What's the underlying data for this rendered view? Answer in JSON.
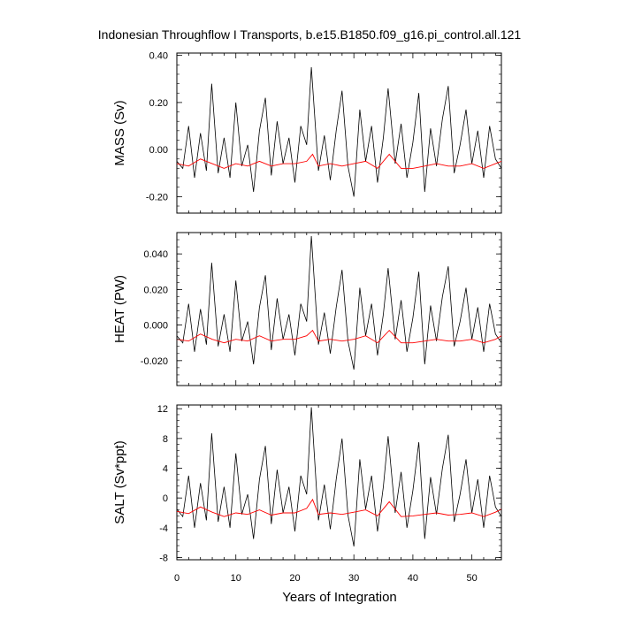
{
  "title": "Indonesian Throughflow I Transports, b.e15.B1850.f09_g16.pi_control.all.121",
  "xlabel": "Years of Integration",
  "colors": {
    "raw_series": "#000000",
    "smooth_series": "#ff0000",
    "frame": "#000000"
  },
  "chart_data": [
    {
      "type": "line",
      "ylabel": "MASS (Sv)",
      "xlim": [
        0,
        55
      ],
      "ylim": [
        -0.27,
        0.41
      ],
      "xticks": [
        "0",
        "10",
        "20",
        "30",
        "40",
        "50"
      ],
      "yticks": [
        "-0.20",
        "0.00",
        "0.20",
        "0.40"
      ],
      "ytick_values": [
        -0.2,
        0.0,
        0.2,
        0.4
      ],
      "grid": false,
      "series": [
        {
          "x": [
            0,
            1,
            2,
            3,
            4,
            5,
            5.9,
            7,
            8,
            9,
            10,
            11,
            12,
            13,
            14,
            15,
            16,
            17,
            18,
            19,
            20,
            21,
            22,
            22.8,
            24,
            25,
            26,
            27,
            28,
            29,
            30,
            31,
            32,
            33,
            34,
            35,
            35.8,
            37,
            38,
            39,
            40,
            41,
            42,
            43,
            44,
            45,
            46,
            47,
            48,
            49,
            50,
            51,
            52,
            53,
            54,
            55
          ],
          "values": [
            -0.05,
            -0.08,
            0.1,
            -0.12,
            0.07,
            -0.09,
            0.28,
            -0.1,
            0.05,
            -0.12,
            0.2,
            -0.07,
            0.02,
            -0.18,
            0.08,
            0.22,
            -0.11,
            0.12,
            -0.06,
            0.05,
            -0.14,
            0.1,
            0.02,
            0.35,
            -0.09,
            0.06,
            -0.13,
            0.08,
            0.25,
            -0.07,
            -0.2,
            0.17,
            -0.05,
            0.1,
            -0.14,
            0.05,
            0.26,
            -0.06,
            0.11,
            -0.12,
            0.03,
            0.24,
            -0.18,
            0.09,
            -0.07,
            0.13,
            0.27,
            -0.1,
            0.02,
            0.17,
            -0.06,
            0.08,
            -0.12,
            0.1,
            -0.04,
            -0.08
          ]
        },
        {
          "x": [
            0,
            2,
            4,
            6,
            8,
            10,
            12,
            14,
            16,
            18,
            20,
            22,
            23,
            24,
            26,
            28,
            30,
            32,
            34,
            36,
            38,
            40,
            42,
            44,
            46,
            48,
            50,
            52,
            54,
            55
          ],
          "values": [
            -0.06,
            -0.07,
            -0.04,
            -0.06,
            -0.08,
            -0.06,
            -0.07,
            -0.05,
            -0.07,
            -0.06,
            -0.06,
            -0.05,
            -0.02,
            -0.07,
            -0.06,
            -0.07,
            -0.06,
            -0.05,
            -0.08,
            -0.02,
            -0.08,
            -0.08,
            -0.07,
            -0.06,
            -0.07,
            -0.07,
            -0.06,
            -0.08,
            -0.06,
            -0.05
          ]
        }
      ]
    },
    {
      "type": "line",
      "ylabel": "HEAT (PW)",
      "xlim": [
        0,
        55
      ],
      "ylim": [
        -0.034,
        0.052
      ],
      "xticks": [
        "0",
        "10",
        "20",
        "30",
        "40",
        "50"
      ],
      "yticks": [
        "-0.020",
        "0.000",
        "0.020",
        "0.040"
      ],
      "ytick_values": [
        -0.02,
        0.0,
        0.02,
        0.04
      ],
      "grid": false,
      "series": [
        {
          "x": [
            0,
            1,
            2,
            3,
            4,
            5,
            5.9,
            7,
            8,
            9,
            10,
            11,
            12,
            13,
            14,
            15,
            16,
            17,
            18,
            19,
            20,
            21,
            22,
            22.8,
            24,
            25,
            26,
            27,
            28,
            29,
            30,
            31,
            32,
            33,
            34,
            35,
            35.8,
            37,
            38,
            39,
            40,
            41,
            42,
            43,
            44,
            45,
            46,
            47,
            48,
            49,
            50,
            51,
            52,
            53,
            54,
            55
          ],
          "values": [
            -0.006,
            -0.01,
            0.012,
            -0.015,
            0.009,
            -0.011,
            0.035,
            -0.012,
            0.006,
            -0.015,
            0.025,
            -0.009,
            0.002,
            -0.022,
            0.01,
            0.028,
            -0.014,
            0.015,
            -0.008,
            0.006,
            -0.017,
            0.012,
            0.002,
            0.05,
            -0.011,
            0.007,
            -0.016,
            0.01,
            0.031,
            -0.009,
            -0.025,
            0.021,
            -0.006,
            0.012,
            -0.017,
            0.006,
            0.032,
            -0.008,
            0.014,
            -0.015,
            0.004,
            0.03,
            -0.022,
            0.011,
            -0.009,
            0.016,
            0.033,
            -0.012,
            0.002,
            0.021,
            -0.008,
            0.01,
            -0.015,
            0.012,
            -0.005,
            -0.01
          ]
        },
        {
          "x": [
            0,
            2,
            4,
            6,
            8,
            10,
            12,
            14,
            16,
            18,
            20,
            22,
            23,
            24,
            26,
            28,
            30,
            32,
            34,
            36,
            38,
            40,
            42,
            44,
            46,
            48,
            50,
            52,
            54,
            55
          ],
          "values": [
            -0.008,
            -0.009,
            -0.005,
            -0.008,
            -0.01,
            -0.008,
            -0.009,
            -0.006,
            -0.009,
            -0.008,
            -0.008,
            -0.006,
            -0.003,
            -0.009,
            -0.008,
            -0.009,
            -0.008,
            -0.006,
            -0.01,
            -0.003,
            -0.01,
            -0.01,
            -0.009,
            -0.008,
            -0.009,
            -0.009,
            -0.008,
            -0.01,
            -0.008,
            -0.006
          ]
        }
      ]
    },
    {
      "type": "line",
      "ylabel": "SALT (Sv*ppt)",
      "xlim": [
        0,
        55
      ],
      "ylim": [
        -8.3,
        12.5
      ],
      "xticks": [
        "0",
        "10",
        "20",
        "30",
        "40",
        "50"
      ],
      "yticks": [
        "-8",
        "-4",
        "0",
        "4",
        "8",
        "12"
      ],
      "ytick_values": [
        -8,
        -4,
        0,
        4,
        8,
        12
      ],
      "grid": false,
      "series": [
        {
          "x": [
            0,
            1,
            2,
            3,
            4,
            5,
            5.9,
            7,
            8,
            9,
            10,
            11,
            12,
            13,
            14,
            15,
            16,
            17,
            18,
            19,
            20,
            21,
            22,
            22.8,
            24,
            25,
            26,
            27,
            28,
            29,
            30,
            31,
            32,
            33,
            34,
            35,
            35.8,
            37,
            38,
            39,
            40,
            41,
            42,
            43,
            44,
            45,
            46,
            47,
            48,
            49,
            50,
            51,
            52,
            53,
            54,
            55
          ],
          "values": [
            -1.5,
            -2.5,
            3,
            -4,
            2,
            -3,
            8.7,
            -3.2,
            1.5,
            -4,
            6,
            -2.2,
            0.5,
            -5.5,
            2.5,
            7,
            -3.5,
            3.8,
            -2,
            1.5,
            -4.5,
            3,
            0.5,
            12.2,
            -3,
            1.8,
            -4.2,
            2.5,
            8,
            -2.3,
            -6.5,
            5.2,
            -1.5,
            3,
            -4.5,
            1.5,
            8.3,
            -2,
            3.5,
            -4,
            1,
            7.5,
            -5.5,
            2.8,
            -2.2,
            4,
            8.5,
            -3.2,
            0.5,
            5.2,
            -2,
            2.5,
            -4,
            3,
            -1.2,
            -2.5
          ]
        },
        {
          "x": [
            0,
            2,
            4,
            6,
            8,
            10,
            12,
            14,
            16,
            18,
            20,
            22,
            23,
            24,
            26,
            28,
            30,
            32,
            34,
            36,
            38,
            40,
            42,
            44,
            46,
            48,
            50,
            52,
            54,
            55
          ],
          "values": [
            -1.8,
            -2.1,
            -1.2,
            -1.9,
            -2.5,
            -2,
            -2.2,
            -1.6,
            -2.3,
            -2,
            -2,
            -1.4,
            -0.2,
            -2.2,
            -2,
            -2.2,
            -1.9,
            -1.6,
            -2.4,
            -0.5,
            -2.5,
            -2.4,
            -2.2,
            -2,
            -2.3,
            -2.2,
            -2,
            -2.5,
            -1.9,
            -1.5
          ]
        }
      ]
    }
  ]
}
